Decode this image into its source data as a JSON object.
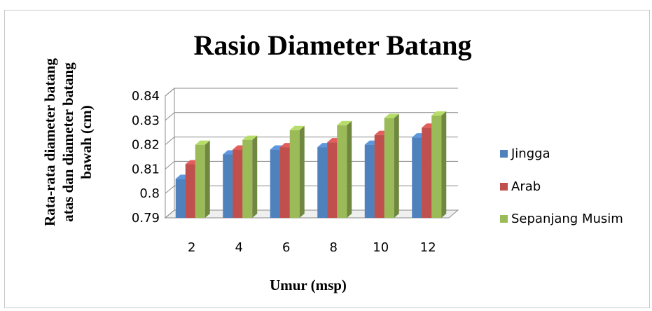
{
  "chart_data": {
    "type": "bar",
    "title": "Rasio Diameter Batang",
    "xlabel": "Umur (msp)",
    "ylabel_lines": [
      "Rata-rata diameter batang",
      "atas dan diameter batang",
      "bawah (cm)"
    ],
    "categories": [
      "2",
      "4",
      "6",
      "8",
      "10",
      "12"
    ],
    "series": [
      {
        "name": "Jingga",
        "color": "#4f81bd",
        "values": [
          0.806,
          0.816,
          0.818,
          0.819,
          0.82,
          0.823
        ]
      },
      {
        "name": "Arab",
        "color": "#c0504d",
        "values": [
          0.812,
          0.818,
          0.819,
          0.821,
          0.824,
          0.827
        ]
      },
      {
        "name": "Sepanjang Musim",
        "color": "#9bbb59",
        "values": [
          0.82,
          0.822,
          0.826,
          0.828,
          0.831,
          0.832
        ]
      }
    ],
    "ylim": [
      0.79,
      0.84
    ],
    "yticks": [
      "0.84",
      "0.83",
      "0.82",
      "0.81",
      "0.8",
      "0.79"
    ],
    "ytick_values": [
      0.84,
      0.83,
      0.82,
      0.81,
      0.8,
      0.79
    ],
    "grid": true,
    "legend_position": "right",
    "style": "3d-clustered-column"
  }
}
